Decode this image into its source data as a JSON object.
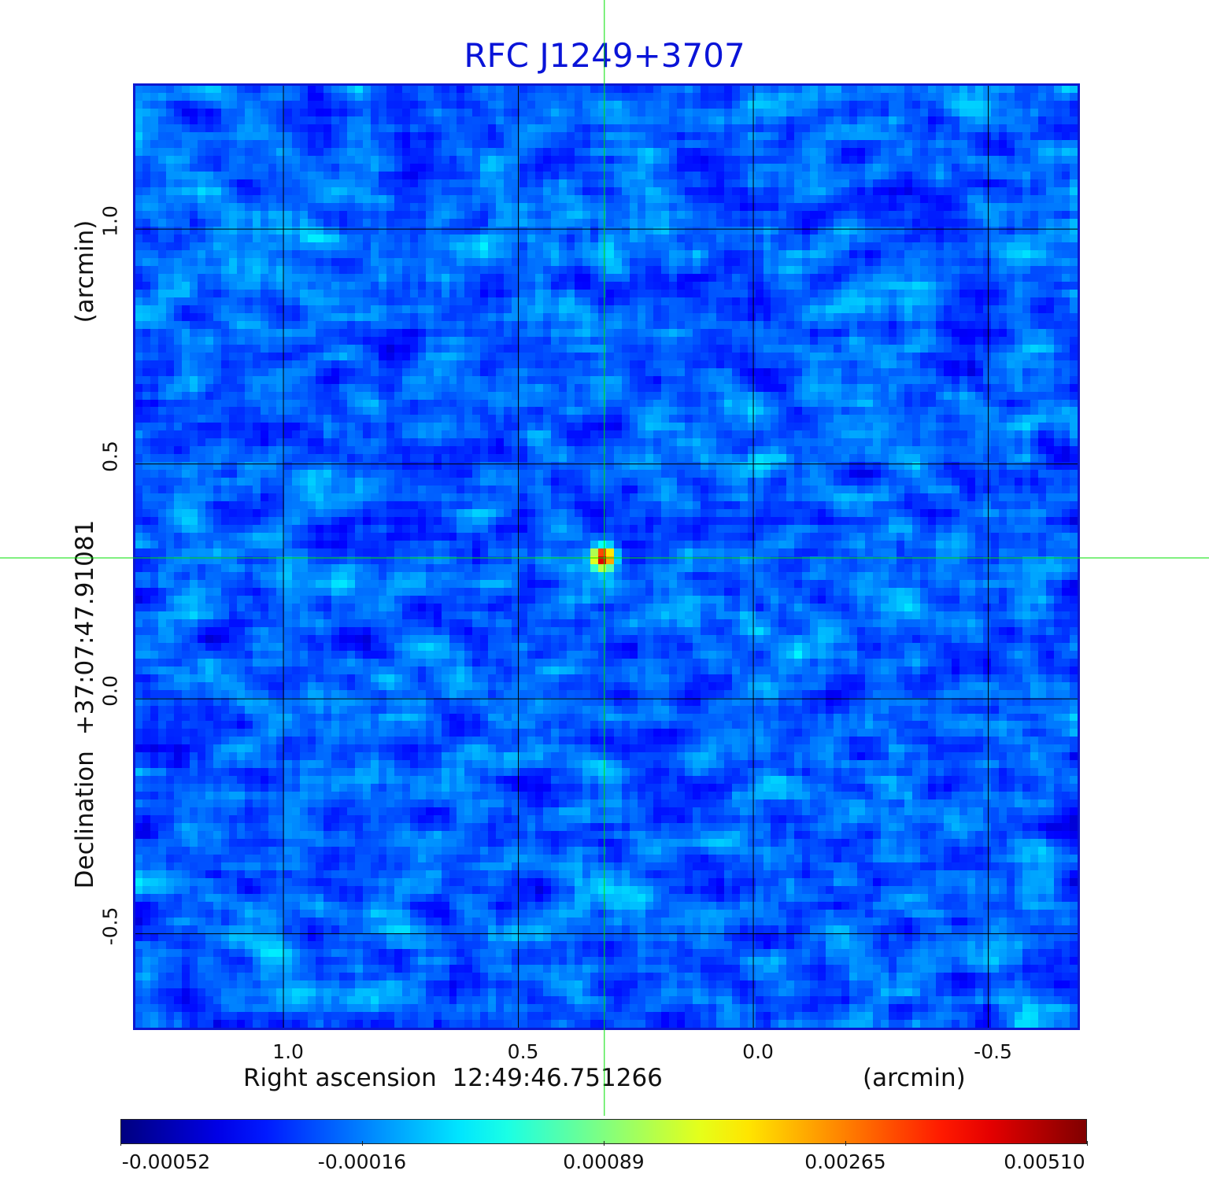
{
  "chart_data": {
    "type": "heatmap",
    "title": "RFC J1249+3707",
    "xlabel": "Right ascension  12:49:46.751266",
    "x_unit": "(arcmin)",
    "ylabel": "Declination  +37:07:47.91081",
    "y_unit": "(arcmin)",
    "x_ticks": [
      1.0,
      0.5,
      0.0,
      -0.5
    ],
    "x_tick_labels": [
      "1.0",
      "0.5",
      "0.0",
      "-0.5"
    ],
    "xlim": [
      1.315,
      -0.69
    ],
    "y_ticks": [
      1.0,
      0.5,
      0.0,
      -0.5
    ],
    "y_tick_labels": [
      "1.0",
      "0.5",
      "0.0",
      "-0.5"
    ],
    "ylim": [
      -0.7,
      1.305
    ],
    "grid": true,
    "colorscale": "jet",
    "colorbar": {
      "ticks": [
        -0.00052,
        -0.00016,
        0.00089,
        0.00265,
        0.0051
      ],
      "tick_labels": [
        "-0.00052",
        "-0.00016",
        "0.00089",
        "0.00265",
        "0.00510"
      ],
      "range": [
        -0.00052,
        0.0051
      ],
      "position": "bottom"
    },
    "source_peak": {
      "x": 0.317,
      "y": 0.3,
      "value": 0.0051
    },
    "crosshair": {
      "x": 0.317,
      "y": 0.3,
      "color": "#00e000"
    }
  },
  "colors": {
    "title": "#0a14d8",
    "frame": "#0b18d0",
    "grid": "#000000",
    "crosshair": "#00e000"
  }
}
